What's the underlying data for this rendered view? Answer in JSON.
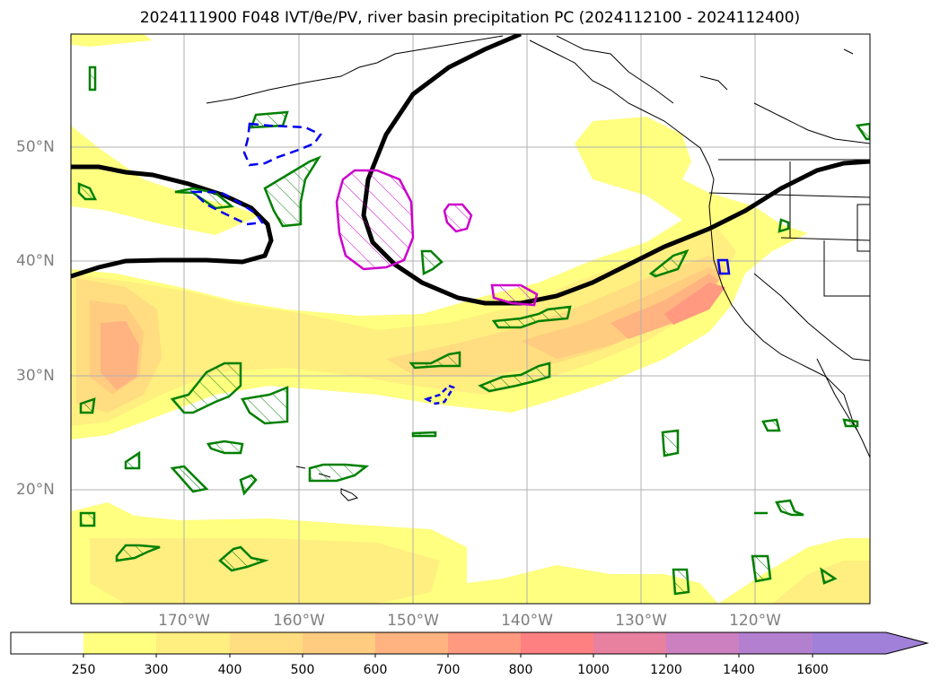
{
  "title": "2024111900 F048 IVT/θe/PV, river basin precipitation PC (2024112100 - 2024112400)",
  "lat_labels": [
    "50°N",
    "40°N",
    "30°N",
    "20°N"
  ],
  "lon_labels": [
    "170°W",
    "160°W",
    "150°W",
    "140°W",
    "130°W",
    "120°W"
  ],
  "colorbar": {
    "labels": [
      "250",
      "300",
      "400",
      "500",
      "600",
      "700",
      "800",
      "1000",
      "1200",
      "1400",
      "1600"
    ],
    "colors": [
      "#ffffff",
      "#ffff80",
      "#ffee80",
      "#ffdd80",
      "#ffcc80",
      "#ffb380",
      "#ff9980",
      "#ff8080",
      "#e880a0",
      "#cc80c0",
      "#b380d0",
      "#a080d8"
    ],
    "extend": "max"
  },
  "contour_colors": {
    "pv": "#000000",
    "theta_e_pos": "#008000",
    "theta_e_neg": "#0000ee",
    "magenta": "#cc00cc",
    "coast": "#000000"
  }
}
